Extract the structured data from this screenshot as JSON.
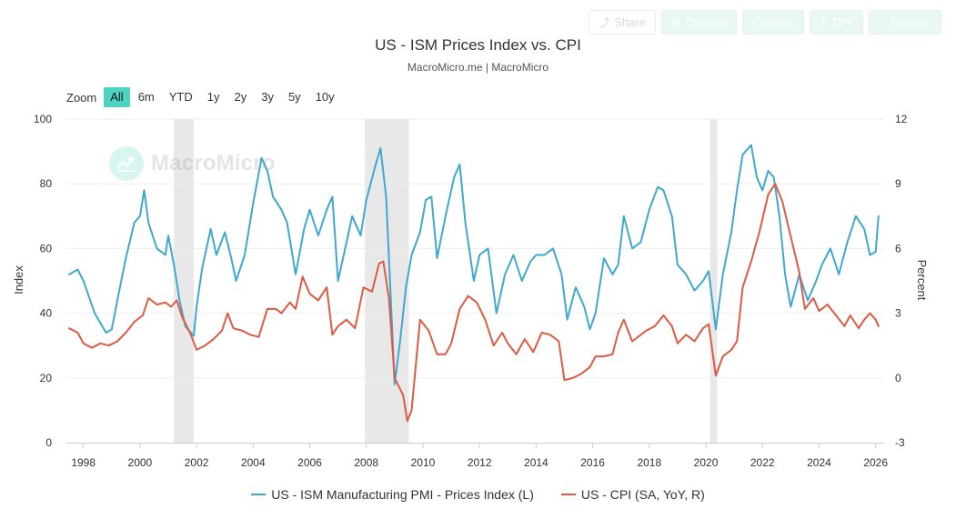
{
  "toolbar": {
    "share": "Share",
    "custom": "Custom",
    "image": "Image",
    "diy": "DIY",
    "enlarge": "Enlarge"
  },
  "chart_data": {
    "type": "line",
    "title": "US - ISM Prices Index vs. CPI",
    "subtitle": "MacroMicro.me | MacroMicro",
    "watermark": "MacroMicro",
    "zoom": {
      "label": "Zoom",
      "options": [
        "All",
        "6m",
        "YTD",
        "1y",
        "2y",
        "3y",
        "5y",
        "10y"
      ],
      "selected": "All"
    },
    "ylabel_left": "Index",
    "ylabel_right": "Percent",
    "ylim_left": [
      0,
      100
    ],
    "ylim_right": [
      -3,
      12
    ],
    "yticks_left": [
      0,
      20,
      40,
      60,
      80,
      100
    ],
    "yticks_right": [
      -3,
      0,
      3,
      6,
      9,
      12
    ],
    "xlim": [
      1997.4,
      2026.3
    ],
    "xticks": [
      1998,
      2000,
      2002,
      2004,
      2006,
      2008,
      2010,
      2012,
      2014,
      2016,
      2018,
      2020,
      2022,
      2024,
      2026
    ],
    "recessions": [
      [
        2001.2,
        2001.9
      ],
      [
        2007.95,
        2009.5
      ],
      [
        2020.15,
        2020.4
      ]
    ],
    "series": [
      {
        "name": "US - ISM Manufacturing PMI - Prices Index (L)",
        "axis": "left",
        "color": "#3ea8cf",
        "points": [
          [
            1997.5,
            52
          ],
          [
            1997.8,
            53.5
          ],
          [
            1998.0,
            50
          ],
          [
            1998.2,
            45
          ],
          [
            1998.4,
            40
          ],
          [
            1998.6,
            37
          ],
          [
            1998.8,
            34
          ],
          [
            1999.0,
            35
          ],
          [
            1999.2,
            44
          ],
          [
            1999.5,
            57
          ],
          [
            1999.8,
            68
          ],
          [
            2000.0,
            70
          ],
          [
            2000.15,
            78
          ],
          [
            2000.3,
            68
          ],
          [
            2000.6,
            60
          ],
          [
            2000.9,
            58
          ],
          [
            2001.0,
            64
          ],
          [
            2001.2,
            55
          ],
          [
            2001.4,
            44
          ],
          [
            2001.6,
            36
          ],
          [
            2001.9,
            33
          ],
          [
            2002.0,
            42
          ],
          [
            2002.2,
            54
          ],
          [
            2002.5,
            66
          ],
          [
            2002.7,
            58
          ],
          [
            2003.0,
            65
          ],
          [
            2003.2,
            58
          ],
          [
            2003.4,
            50
          ],
          [
            2003.7,
            58
          ],
          [
            2004.0,
            74
          ],
          [
            2004.3,
            88
          ],
          [
            2004.5,
            84
          ],
          [
            2004.7,
            76
          ],
          [
            2005.0,
            72
          ],
          [
            2005.2,
            68
          ],
          [
            2005.5,
            52
          ],
          [
            2005.8,
            66
          ],
          [
            2006.0,
            72
          ],
          [
            2006.3,
            64
          ],
          [
            2006.6,
            72
          ],
          [
            2006.8,
            76
          ],
          [
            2007.0,
            50
          ],
          [
            2007.2,
            58
          ],
          [
            2007.5,
            70
          ],
          [
            2007.8,
            64
          ],
          [
            2008.0,
            75
          ],
          [
            2008.3,
            85
          ],
          [
            2008.5,
            91
          ],
          [
            2008.7,
            76
          ],
          [
            2008.9,
            38
          ],
          [
            2009.0,
            18
          ],
          [
            2009.2,
            32
          ],
          [
            2009.4,
            48
          ],
          [
            2009.6,
            58
          ],
          [
            2009.9,
            65
          ],
          [
            2010.1,
            75
          ],
          [
            2010.3,
            76
          ],
          [
            2010.5,
            57
          ],
          [
            2010.8,
            70
          ],
          [
            2011.1,
            82
          ],
          [
            2011.3,
            86
          ],
          [
            2011.5,
            68
          ],
          [
            2011.8,
            50
          ],
          [
            2012.0,
            58
          ],
          [
            2012.3,
            60
          ],
          [
            2012.6,
            40
          ],
          [
            2012.9,
            52
          ],
          [
            2013.2,
            58
          ],
          [
            2013.5,
            50
          ],
          [
            2013.8,
            56
          ],
          [
            2014.0,
            58
          ],
          [
            2014.3,
            58
          ],
          [
            2014.6,
            60
          ],
          [
            2014.9,
            52
          ],
          [
            2015.1,
            38
          ],
          [
            2015.4,
            48
          ],
          [
            2015.7,
            42
          ],
          [
            2015.9,
            35
          ],
          [
            2016.1,
            40
          ],
          [
            2016.4,
            57
          ],
          [
            2016.7,
            52
          ],
          [
            2016.9,
            55
          ],
          [
            2017.1,
            70
          ],
          [
            2017.4,
            60
          ],
          [
            2017.7,
            62
          ],
          [
            2018.0,
            72
          ],
          [
            2018.3,
            79
          ],
          [
            2018.5,
            78
          ],
          [
            2018.8,
            70
          ],
          [
            2019.0,
            55
          ],
          [
            2019.3,
            52
          ],
          [
            2019.6,
            47
          ],
          [
            2019.9,
            50
          ],
          [
            2020.1,
            53
          ],
          [
            2020.35,
            35
          ],
          [
            2020.6,
            52
          ],
          [
            2020.9,
            65
          ],
          [
            2021.1,
            78
          ],
          [
            2021.3,
            89
          ],
          [
            2021.6,
            92
          ],
          [
            2021.8,
            82
          ],
          [
            2022.0,
            78
          ],
          [
            2022.2,
            84
          ],
          [
            2022.4,
            82
          ],
          [
            2022.6,
            70
          ],
          [
            2022.8,
            52
          ],
          [
            2023.0,
            42
          ],
          [
            2023.3,
            52
          ],
          [
            2023.6,
            44
          ],
          [
            2023.9,
            50
          ],
          [
            2024.1,
            55
          ],
          [
            2024.4,
            60
          ],
          [
            2024.7,
            52
          ],
          [
            2025.0,
            62
          ],
          [
            2025.3,
            70
          ],
          [
            2025.6,
            66
          ],
          [
            2025.8,
            58
          ],
          [
            2026.0,
            59
          ],
          [
            2026.1,
            70
          ]
        ]
      },
      {
        "name": "US - CPI (SA, YoY, R)",
        "axis": "right",
        "color": "#de5a43",
        "points": [
          [
            1997.5,
            2.3
          ],
          [
            1997.8,
            2.1
          ],
          [
            1998.0,
            1.6
          ],
          [
            1998.3,
            1.4
          ],
          [
            1998.6,
            1.6
          ],
          [
            1998.9,
            1.5
          ],
          [
            1999.2,
            1.7
          ],
          [
            1999.5,
            2.1
          ],
          [
            1999.8,
            2.6
          ],
          [
            2000.1,
            2.9
          ],
          [
            2000.3,
            3.7
          ],
          [
            2000.6,
            3.4
          ],
          [
            2000.9,
            3.5
          ],
          [
            2001.1,
            3.3
          ],
          [
            2001.3,
            3.6
          ],
          [
            2001.5,
            2.8
          ],
          [
            2001.8,
            2.0
          ],
          [
            2002.0,
            1.3
          ],
          [
            2002.3,
            1.5
          ],
          [
            2002.6,
            1.8
          ],
          [
            2002.9,
            2.2
          ],
          [
            2003.1,
            3.0
          ],
          [
            2003.3,
            2.3
          ],
          [
            2003.6,
            2.2
          ],
          [
            2003.9,
            2.0
          ],
          [
            2004.2,
            1.9
          ],
          [
            2004.5,
            3.2
          ],
          [
            2004.8,
            3.2
          ],
          [
            2005.0,
            3.0
          ],
          [
            2005.3,
            3.5
          ],
          [
            2005.5,
            3.2
          ],
          [
            2005.75,
            4.7
          ],
          [
            2006.0,
            3.9
          ],
          [
            2006.3,
            3.6
          ],
          [
            2006.6,
            4.2
          ],
          [
            2006.8,
            2.0
          ],
          [
            2007.0,
            2.4
          ],
          [
            2007.3,
            2.7
          ],
          [
            2007.6,
            2.3
          ],
          [
            2007.9,
            4.2
          ],
          [
            2008.2,
            4.0
          ],
          [
            2008.45,
            5.3
          ],
          [
            2008.6,
            5.4
          ],
          [
            2008.8,
            3.7
          ],
          [
            2009.0,
            0.0
          ],
          [
            2009.3,
            -0.8
          ],
          [
            2009.45,
            -2.0
          ],
          [
            2009.6,
            -1.5
          ],
          [
            2009.9,
            2.7
          ],
          [
            2010.2,
            2.2
          ],
          [
            2010.5,
            1.1
          ],
          [
            2010.8,
            1.1
          ],
          [
            2011.0,
            1.6
          ],
          [
            2011.3,
            3.2
          ],
          [
            2011.6,
            3.8
          ],
          [
            2011.9,
            3.5
          ],
          [
            2012.2,
            2.7
          ],
          [
            2012.5,
            1.5
          ],
          [
            2012.8,
            2.1
          ],
          [
            2013.0,
            1.6
          ],
          [
            2013.3,
            1.1
          ],
          [
            2013.6,
            1.8
          ],
          [
            2013.9,
            1.2
          ],
          [
            2014.2,
            2.1
          ],
          [
            2014.5,
            2.0
          ],
          [
            2014.8,
            1.7
          ],
          [
            2015.0,
            -0.1
          ],
          [
            2015.3,
            0.0
          ],
          [
            2015.6,
            0.2
          ],
          [
            2015.9,
            0.5
          ],
          [
            2016.1,
            1.0
          ],
          [
            2016.4,
            1.0
          ],
          [
            2016.7,
            1.1
          ],
          [
            2016.9,
            2.1
          ],
          [
            2017.1,
            2.7
          ],
          [
            2017.4,
            1.7
          ],
          [
            2017.7,
            2.0
          ],
          [
            2017.9,
            2.2
          ],
          [
            2018.2,
            2.4
          ],
          [
            2018.5,
            2.9
          ],
          [
            2018.8,
            2.4
          ],
          [
            2019.0,
            1.6
          ],
          [
            2019.3,
            2.0
          ],
          [
            2019.6,
            1.7
          ],
          [
            2019.9,
            2.3
          ],
          [
            2020.1,
            2.5
          ],
          [
            2020.35,
            0.1
          ],
          [
            2020.6,
            1.0
          ],
          [
            2020.9,
            1.3
          ],
          [
            2021.1,
            1.7
          ],
          [
            2021.3,
            4.2
          ],
          [
            2021.6,
            5.4
          ],
          [
            2021.9,
            6.8
          ],
          [
            2022.2,
            8.5
          ],
          [
            2022.45,
            9.0
          ],
          [
            2022.7,
            8.2
          ],
          [
            2022.9,
            7.1
          ],
          [
            2023.1,
            6.0
          ],
          [
            2023.3,
            4.9
          ],
          [
            2023.5,
            3.2
          ],
          [
            2023.8,
            3.7
          ],
          [
            2024.0,
            3.1
          ],
          [
            2024.3,
            3.4
          ],
          [
            2024.6,
            2.9
          ],
          [
            2024.9,
            2.4
          ],
          [
            2025.1,
            2.9
          ],
          [
            2025.4,
            2.3
          ],
          [
            2025.6,
            2.7
          ],
          [
            2025.8,
            3.0
          ],
          [
            2026.0,
            2.7
          ],
          [
            2026.1,
            2.4
          ]
        ]
      }
    ]
  }
}
